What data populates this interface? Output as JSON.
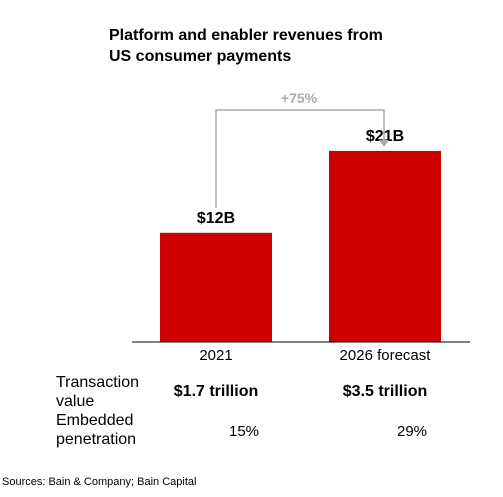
{
  "chart_data": {
    "type": "bar",
    "title": "Platform and enabler revenues from US consumer payments",
    "title_lines": [
      "Platform and enabler revenues from",
      "US consumer payments"
    ],
    "categories": [
      "2021",
      "2026 forecast"
    ],
    "values": [
      12,
      21
    ],
    "data_labels": [
      "$12B",
      "$21B"
    ],
    "unit": "$B",
    "ylim": [
      0,
      30
    ],
    "bar_color": "#cc0000",
    "change_label": "+75%",
    "change_color": "#aaaaaa",
    "grid": false,
    "legend": "none"
  },
  "table": {
    "rows": [
      {
        "label_lines": [
          "Transaction",
          "value"
        ],
        "values": [
          "$1.7 trillion",
          "$3.5 trillion"
        ]
      },
      {
        "label_lines": [
          "Embedded",
          "penetration"
        ],
        "values": [
          "15%",
          "29%"
        ]
      }
    ]
  },
  "source": "Sources: Bain & Company; Bain Capital"
}
